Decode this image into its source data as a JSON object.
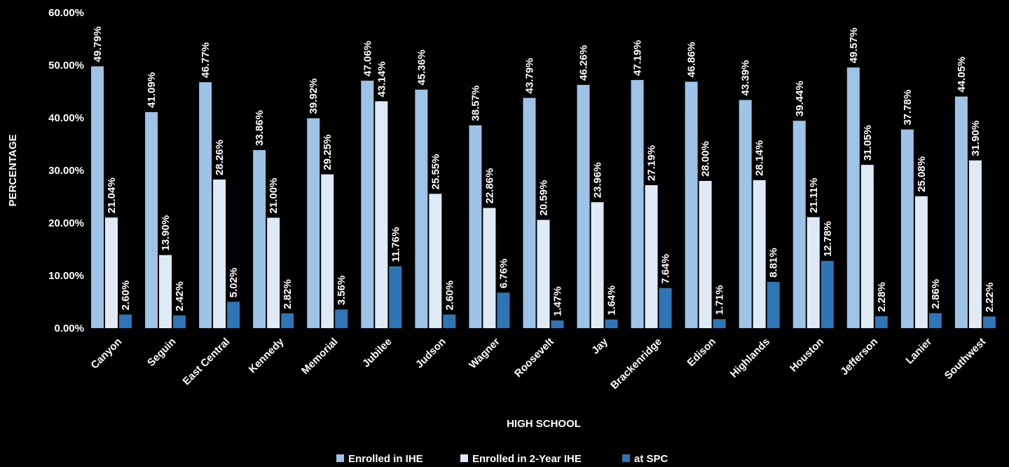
{
  "chart_data": {
    "type": "bar",
    "title": "",
    "xlabel": "HIGH SCHOOL",
    "ylabel": "PERCENTAGE",
    "ylim": [
      0,
      60
    ],
    "yticks": [
      "0.00%",
      "10.00%",
      "20.00%",
      "30.00%",
      "40.00%",
      "50.00%",
      "60.00%"
    ],
    "grid": false,
    "legend_position": "bottom",
    "categories": [
      "Canyon",
      "Seguin",
      "East Central",
      "Kennedy",
      "Memorial",
      "Jubilee",
      "Judson",
      "Wagner",
      "Roosevelt",
      "Jay",
      "Brackenridge",
      "Edison",
      "Highlands",
      "Houston",
      "Jefferson",
      "Lanier",
      "Southwest"
    ],
    "series": [
      {
        "name": "Enrolled in IHE",
        "color": "#9dc3e6",
        "values": [
          49.79,
          41.09,
          46.77,
          33.86,
          39.92,
          47.06,
          45.36,
          38.57,
          43.79,
          46.26,
          47.19,
          46.86,
          43.39,
          39.44,
          49.57,
          37.78,
          44.05
        ],
        "labels": [
          "49.79%",
          "41.09%",
          "46.77%",
          "33.86%",
          "39.92%",
          "47.06%",
          "45.36%",
          "38.57%",
          "43.79%",
          "46.26%",
          "47.19%",
          "46.86%",
          "43.39%",
          "39.44%",
          "49.57%",
          "37.78%",
          "44.05%"
        ]
      },
      {
        "name": "Enrolled in 2-Year IHE",
        "color": "#deebf7",
        "values": [
          21.04,
          13.9,
          28.26,
          21.0,
          29.25,
          43.14,
          25.55,
          22.86,
          20.59,
          23.96,
          27.19,
          28.0,
          28.14,
          21.11,
          31.05,
          25.08,
          31.9
        ],
        "labels": [
          "21.04%",
          "13.90%",
          "28.26%",
          "21.00%",
          "29.25%",
          "43.14%",
          "25.55%",
          "22.86%",
          "20.59%",
          "23.96%",
          "27.19%",
          "28.00%",
          "28.14%",
          "21.11%",
          "31.05%",
          "25.08%",
          "31.90%"
        ]
      },
      {
        "name": "at SPC",
        "color": "#2e75b6",
        "values": [
          2.6,
          2.42,
          5.02,
          2.82,
          3.56,
          11.76,
          2.6,
          6.76,
          1.47,
          1.64,
          7.64,
          1.71,
          8.81,
          12.78,
          2.28,
          2.86,
          2.22
        ],
        "labels": [
          "2.60%",
          "2.42%",
          "5.02%",
          "2.82%",
          "3.56%",
          "11.76%",
          "2.60%",
          "6.76%",
          "1.47%",
          "1.64%",
          "7.64%",
          "1.71%",
          "8.81%",
          "12.78%",
          "2.28%",
          "2.86%",
          "2.22%"
        ]
      }
    ]
  }
}
